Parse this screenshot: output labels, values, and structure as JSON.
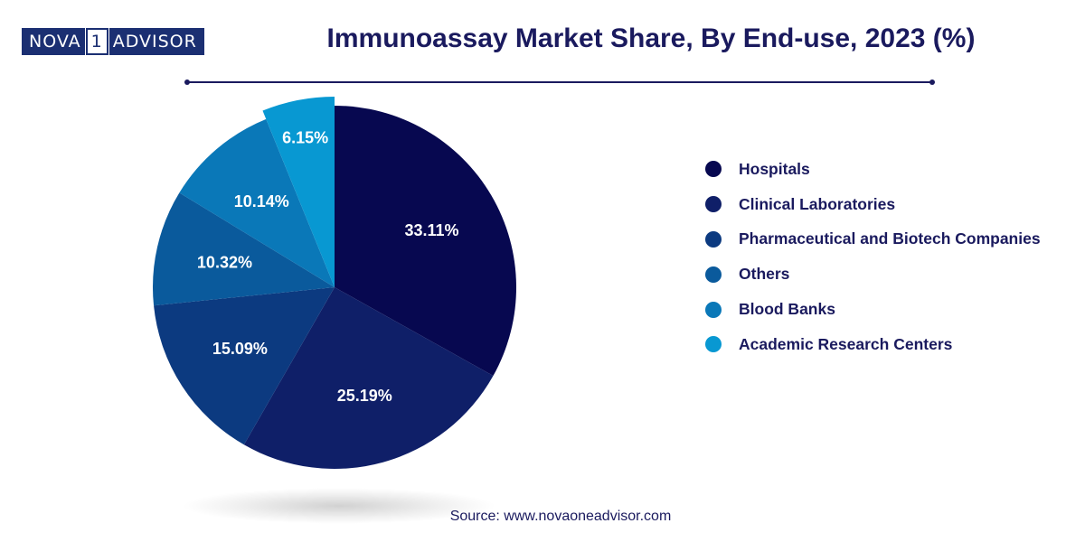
{
  "logo": {
    "part_a": "NOVA",
    "part_num": "1",
    "part_b": "ADVISOR"
  },
  "title": "Immunoassay Market Share, By End-use, 2023 (%)",
  "source": "Source: www.novaoneadvisor.com",
  "colors": {
    "title": "#1a1a5e",
    "rule": "#1a1a5e"
  },
  "chart_data": {
    "type": "pie",
    "title": "Immunoassay Market Share, By End-use, 2023 (%)",
    "legend_position": "right",
    "categories": [
      "Hospitals",
      "Clinical Laboratories",
      "Pharmaceutical and Biotech Companies",
      "Others",
      "Blood Banks",
      "Academic Research Centers"
    ],
    "values": [
      33.11,
      25.19,
      15.09,
      10.32,
      10.14,
      6.15
    ],
    "labels": [
      "33.11%",
      "25.19%",
      "15.09%",
      "10.32%",
      "10.14%",
      "6.15%"
    ],
    "colors": [
      "#070850",
      "#0f1f68",
      "#0c3a80",
      "#0a5a9c",
      "#0a78b8",
      "#0898d2"
    ]
  }
}
